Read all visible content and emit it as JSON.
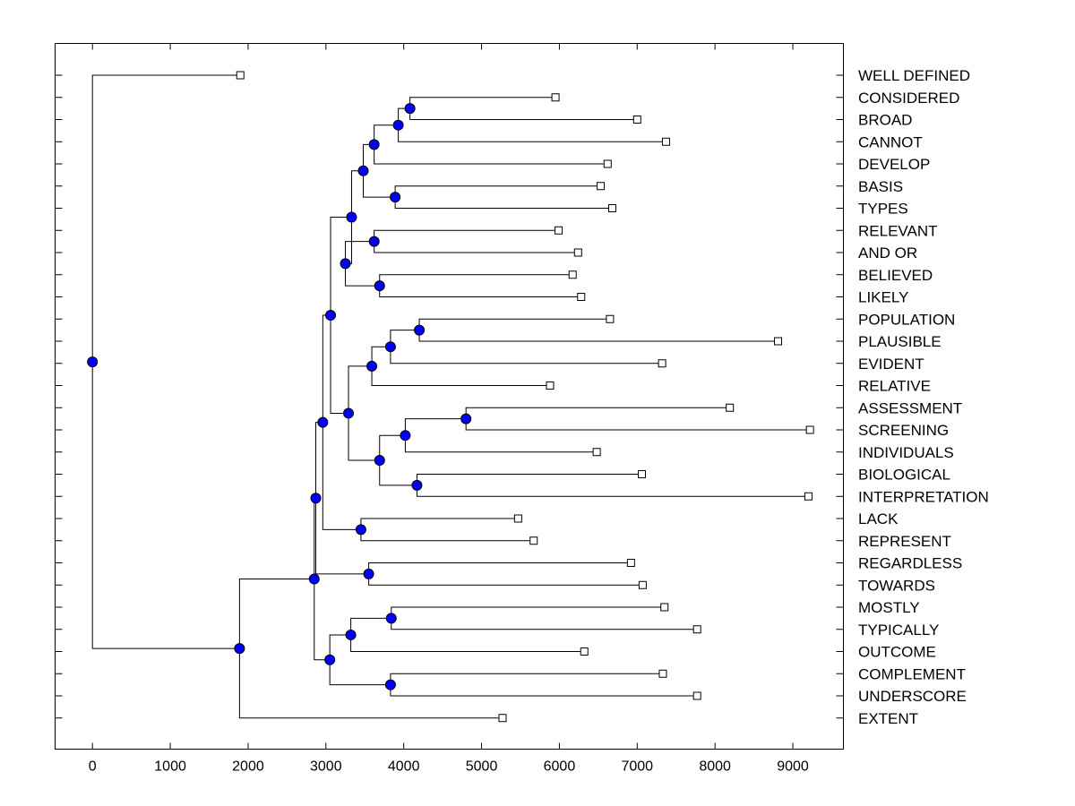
{
  "chart_data": {
    "type": "dendrogram",
    "orientation": "horizontal",
    "xlim": [
      -480,
      9650
    ],
    "x_ticks": [
      0,
      1000,
      2000,
      3000,
      4000,
      5000,
      6000,
      7000,
      8000,
      9000
    ],
    "x_tick_labels": [
      "0",
      "1000",
      "2000",
      "3000",
      "4000",
      "5000",
      "6000",
      "7000",
      "8000",
      "9000"
    ],
    "colors": {
      "node_fill": "#0000ff",
      "leaf_fill": "#ffffff",
      "line": "#000000"
    },
    "leaves": [
      {
        "label": "WELL DEFINED",
        "value": 1900
      },
      {
        "label": "CONSIDERED",
        "value": 5950
      },
      {
        "label": "BROAD",
        "value": 7000
      },
      {
        "label": "CANNOT",
        "value": 7370
      },
      {
        "label": "DEVELOP",
        "value": 6620
      },
      {
        "label": "BASIS",
        "value": 6530
      },
      {
        "label": "TYPES",
        "value": 6680
      },
      {
        "label": "RELEVANT",
        "value": 5990
      },
      {
        "label": "AND OR",
        "value": 6240
      },
      {
        "label": "BELIEVED",
        "value": 6170
      },
      {
        "label": "LIKELY",
        "value": 6280
      },
      {
        "label": "POPULATION",
        "value": 6650
      },
      {
        "label": "PLAUSIBLE",
        "value": 8810
      },
      {
        "label": "EVIDENT",
        "value": 7320
      },
      {
        "label": "RELATIVE",
        "value": 5880
      },
      {
        "label": "ASSESSMENT",
        "value": 8190
      },
      {
        "label": "SCREENING",
        "value": 9220
      },
      {
        "label": "INDIVIDUALS",
        "value": 6480
      },
      {
        "label": "BIOLOGICAL",
        "value": 7060
      },
      {
        "label": "INTERPRETATION",
        "value": 9200
      },
      {
        "label": "LACK",
        "value": 5470
      },
      {
        "label": "REPRESENT",
        "value": 5670
      },
      {
        "label": "REGARDLESS",
        "value": 6920
      },
      {
        "label": "TOWARDS",
        "value": 7070
      },
      {
        "label": "MOSTLY",
        "value": 7350
      },
      {
        "label": "TYPICALLY",
        "value": 7770
      },
      {
        "label": "OUTCOME",
        "value": 6320
      },
      {
        "label": "COMPLEMENT",
        "value": 7330
      },
      {
        "label": "UNDERSCORE",
        "value": 7770
      },
      {
        "label": "EXTENT",
        "value": 5270
      }
    ],
    "merges": [
      {
        "id": "n1",
        "value": 4080,
        "children": [
          "L1",
          "L2"
        ]
      },
      {
        "id": "n2",
        "value": 3930,
        "children": [
          "n1",
          "L3"
        ]
      },
      {
        "id": "n3",
        "value": 3620,
        "children": [
          "n2",
          "L4"
        ]
      },
      {
        "id": "n4",
        "value": 3890,
        "children": [
          "L5",
          "L6"
        ]
      },
      {
        "id": "n5",
        "value": 3480,
        "children": [
          "n3",
          "n4"
        ]
      },
      {
        "id": "n6",
        "value": 3620,
        "children": [
          "L7",
          "L8"
        ]
      },
      {
        "id": "n7",
        "value": 3690,
        "children": [
          "L9",
          "L10"
        ]
      },
      {
        "id": "n8",
        "value": 3250,
        "children": [
          "n6",
          "n7"
        ]
      },
      {
        "id": "n9",
        "value": 3330,
        "children": [
          "n5",
          "n8"
        ]
      },
      {
        "id": "n10",
        "value": 4200,
        "children": [
          "L11",
          "L12"
        ]
      },
      {
        "id": "n11",
        "value": 3830,
        "children": [
          "n10",
          "L13"
        ]
      },
      {
        "id": "n12",
        "value": 3590,
        "children": [
          "n11",
          "L14"
        ]
      },
      {
        "id": "n13",
        "value": 4800,
        "children": [
          "L15",
          "L16"
        ]
      },
      {
        "id": "n14",
        "value": 4020,
        "children": [
          "n13",
          "L17"
        ]
      },
      {
        "id": "n15",
        "value": 4170,
        "children": [
          "L18",
          "L19"
        ]
      },
      {
        "id": "n16",
        "value": 3690,
        "children": [
          "n14",
          "n15"
        ]
      },
      {
        "id": "n17",
        "value": 3290,
        "children": [
          "n12",
          "n16"
        ]
      },
      {
        "id": "n18",
        "value": 3060,
        "children": [
          "n9",
          "n17"
        ]
      },
      {
        "id": "n19",
        "value": 3450,
        "children": [
          "L20",
          "L21"
        ]
      },
      {
        "id": "n20",
        "value": 2960,
        "children": [
          "n18",
          "n19"
        ]
      },
      {
        "id": "n21",
        "value": 3550,
        "children": [
          "L22",
          "L23"
        ]
      },
      {
        "id": "n22",
        "value": 2870,
        "children": [
          "n20",
          "n21"
        ]
      },
      {
        "id": "n23",
        "value": 3840,
        "children": [
          "L24",
          "L25"
        ]
      },
      {
        "id": "n24",
        "value": 3320,
        "children": [
          "n23",
          "L26"
        ]
      },
      {
        "id": "n25",
        "value": 3830,
        "children": [
          "L27",
          "L28"
        ]
      },
      {
        "id": "n26",
        "value": 3050,
        "children": [
          "n24",
          "n25"
        ]
      },
      {
        "id": "n27",
        "value": 2850,
        "children": [
          "n22",
          "n26"
        ]
      },
      {
        "id": "n28",
        "value": 1890,
        "children": [
          "n27",
          "L29"
        ]
      },
      {
        "id": "n29",
        "value": 0,
        "children": [
          "L0",
          "n28"
        ]
      }
    ]
  }
}
